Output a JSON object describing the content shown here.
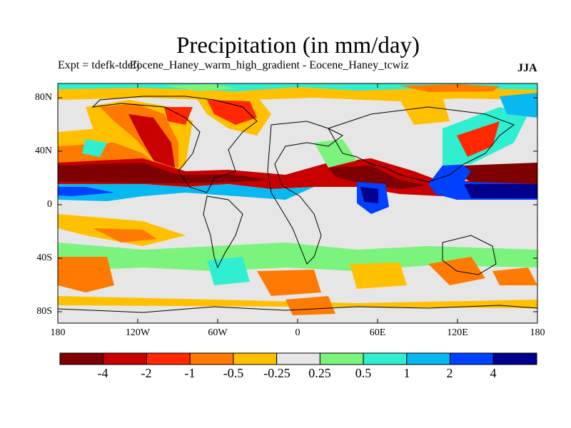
{
  "title": "Precipitation (in mm/day)",
  "subtitle": "Expt = tdefk-tdefj",
  "experiment_label": "Eocene_Haney_warm_high_gradient - Eocene_Haney_tcwiz",
  "season": "JJA",
  "map": {
    "lat_ticks": [
      "80N",
      "40N",
      "0",
      "40S",
      "80S"
    ],
    "lon_ticks": [
      "180",
      "120W",
      "60W",
      "0",
      "60E",
      "120E",
      "180"
    ]
  },
  "colorbar": {
    "labels": [
      "-4",
      "-2",
      "-1",
      "-0.5",
      "-0.25",
      "0.25",
      "0.5",
      "1",
      "2",
      "4"
    ],
    "colors": [
      "#7f0000",
      "#c80000",
      "#ff2800",
      "#ff7a00",
      "#ffc000",
      "#e6e6e6",
      "#7cf37c",
      "#30efd0",
      "#08b8f0",
      "#0040ff",
      "#00008c"
    ]
  }
}
